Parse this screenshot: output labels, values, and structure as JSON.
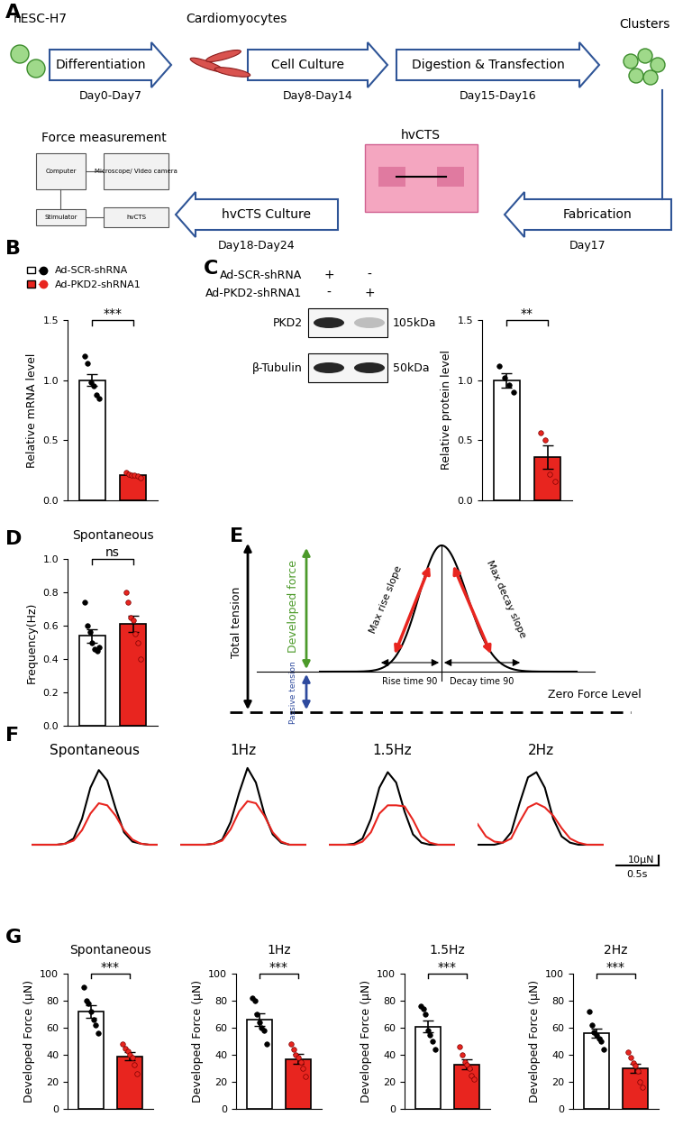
{
  "workflow": {
    "panel": "A",
    "stages": [
      {
        "text": "Differentiation",
        "days": "Day0-Day7"
      },
      {
        "text": "Cell Culture",
        "days": "Day8-Day14"
      },
      {
        "text": "Digestion & Transfection",
        "days": "Day15-Day16"
      },
      {
        "text": "Fabrication",
        "days": "Day17"
      },
      {
        "text": "hvCTS Culture",
        "days": "Day18-Day24"
      }
    ],
    "nodes": [
      "hESC-H7",
      "Cardiomyocytes",
      "Clusters",
      "hvCTS",
      "Force measurement"
    ],
    "setup_labels": [
      "Computer",
      "Microscope/ Video camera",
      "Stimulator",
      "hvCTS"
    ]
  },
  "blot": {
    "panel": "C",
    "conditions": [
      {
        "name": "Ad-SCR-shRNA",
        "lanes": [
          "+",
          "-"
        ]
      },
      {
        "name": "Ad-PKD2-shRNA1",
        "lanes": [
          "-",
          "+"
        ]
      }
    ],
    "bands": [
      {
        "protein": "PKD2",
        "size": "105kDa",
        "intensity": [
          1.0,
          0.3
        ]
      },
      {
        "protein": "β-Tubulin",
        "size": "50kDa",
        "intensity": [
          1.0,
          1.0
        ]
      }
    ]
  },
  "schematic": {
    "panel": "E",
    "total": "Total tension",
    "developed": "Developed force",
    "passive": "Passive tension",
    "rise_slope": "Max rise slope",
    "decay_slope": "Max decay slope",
    "rise_time": "Rise time 90",
    "decay_time": "Decay time 90",
    "zero": "Zero Force Level"
  },
  "traces": {
    "panel": "F",
    "type": "line",
    "tick_labels": false,
    "x": [
      0.0,
      0.1,
      0.2,
      0.3,
      0.4,
      0.5,
      0.6,
      0.7,
      0.8,
      0.9,
      1.0,
      1.1,
      1.2,
      1.3,
      1.4,
      1.5
    ],
    "xlim": [
      0.0,
      1.5
    ],
    "ylim": [
      -20,
      80
    ],
    "panels": [
      {
        "title": "Spontaneous",
        "series": [
          {
            "color": "#000000",
            "values": [
              0,
              0,
              0,
              0,
              1,
              6,
              25,
              55,
              72,
              62,
              35,
              12,
              3,
              1,
              0,
              0
            ]
          },
          {
            "color": "#e8251f",
            "values": [
              0,
              0,
              0,
              0,
              1,
              4,
              14,
              30,
              40,
              38,
              28,
              14,
              5,
              1,
              0,
              0
            ]
          }
        ]
      },
      {
        "title": "1Hz",
        "series": [
          {
            "color": "#000000",
            "values": [
              0,
              0,
              0,
              0,
              1,
              5,
              22,
              50,
              74,
              60,
              30,
              10,
              2,
              0,
              0,
              0
            ]
          },
          {
            "color": "#e8251f",
            "values": [
              0,
              0,
              0,
              0,
              1,
              4,
              15,
              32,
              42,
              40,
              28,
              12,
              3,
              0,
              0,
              0
            ]
          }
        ]
      },
      {
        "title": "1.5Hz",
        "series": [
          {
            "color": "#000000",
            "values": [
              0,
              0,
              0,
              1,
              6,
              25,
              55,
              70,
              60,
              32,
              10,
              2,
              0,
              0,
              0,
              0
            ]
          },
          {
            "color": "#e8251f",
            "values": [
              0,
              0,
              0,
              0,
              3,
              12,
              30,
              38,
              38,
              37,
              24,
              8,
              2,
              0,
              0,
              0
            ]
          }
        ]
      },
      {
        "title": "2Hz",
        "series": [
          {
            "color": "#000000",
            "values": [
              0,
              0,
              0,
              2,
              12,
              40,
              65,
              70,
              55,
              25,
              8,
              2,
              0,
              0,
              0,
              0
            ]
          },
          {
            "color": "#e8251f",
            "values": [
              20,
              8,
              3,
              2,
              6,
              22,
              36,
              40,
              36,
              28,
              16,
              6,
              2,
              0,
              0,
              0
            ]
          }
        ]
      }
    ],
    "scale_bar": {
      "y": 10,
      "y_label": "10μN",
      "x": 0.5,
      "x_label": "0.5s"
    }
  },
  "chart_data": [
    {
      "panel": "B",
      "type": "bar",
      "ylabel": "Relative mRNA level",
      "ylim": [
        0.0,
        1.5
      ],
      "yticks": [
        0.0,
        0.5,
        1.0,
        1.5
      ],
      "legend": "top",
      "significance": "***",
      "marker": "o",
      "tick_labels": "y",
      "series": [
        {
          "name": "Ad-SCR-shRNA",
          "color": "#ffffff",
          "values": [
            1.0
          ],
          "errors": [
            0.05
          ],
          "points": [
            [
              1.2,
              1.14,
              0.98,
              0.95,
              0.88,
              0.85
            ]
          ]
        },
        {
          "name": "Ad-PKD2-shRNA1",
          "color": "#e8251f",
          "values": [
            0.21
          ],
          "errors": [
            0.01
          ],
          "points": [
            [
              0.23,
              0.22,
              0.21,
              0.21,
              0.2,
              0.19
            ]
          ]
        }
      ]
    },
    {
      "type": "bar",
      "ylabel": "Relative protein level",
      "ylim": [
        0.0,
        1.5
      ],
      "yticks": [
        0.0,
        0.5,
        1.0,
        1.5
      ],
      "significance": "**",
      "marker": "o",
      "tick_labels": "y",
      "series": [
        {
          "color": "#ffffff",
          "values": [
            1.0
          ],
          "errors": [
            0.06
          ],
          "points": [
            [
              1.12,
              1.02,
              0.96,
              0.9
            ]
          ]
        },
        {
          "color": "#e8251f",
          "values": [
            0.36
          ],
          "errors": [
            0.1
          ],
          "points": [
            [
              0.56,
              0.5,
              0.22,
              0.16
            ]
          ]
        }
      ]
    },
    {
      "panel": "D",
      "type": "bar",
      "title": "Spontaneous",
      "ylabel": "Frequency(Hz)",
      "ylim": [
        0.0,
        1.0
      ],
      "yticks": [
        0.0,
        0.2,
        0.4,
        0.6,
        0.8,
        1.0
      ],
      "significance": "ns",
      "marker": "o",
      "tick_labels": "y",
      "series": [
        {
          "color": "#ffffff",
          "values": [
            0.54
          ],
          "errors": [
            0.04
          ],
          "points": [
            [
              0.74,
              0.6,
              0.56,
              0.5,
              0.46,
              0.45,
              0.47
            ]
          ]
        },
        {
          "color": "#e8251f",
          "values": [
            0.61
          ],
          "errors": [
            0.05
          ],
          "points": [
            [
              0.8,
              0.74,
              0.65,
              0.63,
              0.55,
              0.5,
              0.4
            ]
          ]
        }
      ]
    },
    {
      "panel": "G",
      "type": "bar",
      "title": "Spontaneous",
      "ylabel": "Developed Force (μN)",
      "ylim": [
        0,
        100
      ],
      "yticks": [
        0,
        20,
        40,
        60,
        80,
        100
      ],
      "significance": "***",
      "marker": "o",
      "tick_labels": "y",
      "series": [
        {
          "color": "#ffffff",
          "values": [
            72
          ],
          "errors": [
            4.5
          ],
          "points": [
            [
              90,
              80,
              78,
              72,
              66,
              62,
              56
            ]
          ]
        },
        {
          "color": "#e8251f",
          "values": [
            39
          ],
          "errors": [
            3
          ],
          "points": [
            [
              48,
              45,
              43,
              40,
              38,
              33,
              26
            ]
          ]
        }
      ]
    },
    {
      "type": "bar",
      "title": "1Hz",
      "ylabel": "Developed Force (μN)",
      "ylim": [
        0,
        100
      ],
      "yticks": [
        0,
        20,
        40,
        60,
        80,
        100
      ],
      "significance": "***",
      "marker": "o",
      "tick_labels": "y",
      "series": [
        {
          "color": "#ffffff",
          "values": [
            66
          ],
          "errors": [
            4.5
          ],
          "points": [
            [
              82,
              80,
              70,
              64,
              60,
              58,
              48
            ]
          ]
        },
        {
          "color": "#e8251f",
          "values": [
            37
          ],
          "errors": [
            3.5
          ],
          "points": [
            [
              48,
              44,
              40,
              38,
              35,
              30,
              24
            ]
          ]
        }
      ]
    },
    {
      "type": "bar",
      "title": "1.5Hz",
      "ylabel": "Developed Force (μN)",
      "ylim": [
        0,
        100
      ],
      "yticks": [
        0,
        20,
        40,
        60,
        80,
        100
      ],
      "significance": "***",
      "marker": "o",
      "tick_labels": "y",
      "series": [
        {
          "color": "#ffffff",
          "values": [
            61
          ],
          "errors": [
            4.5
          ],
          "points": [
            [
              76,
              74,
              70,
              58,
              55,
              50,
              44
            ]
          ]
        },
        {
          "color": "#e8251f",
          "values": [
            33
          ],
          "errors": [
            3.5
          ],
          "points": [
            [
              46,
              40,
              35,
              33,
              30,
              25,
              22
            ]
          ]
        }
      ]
    },
    {
      "type": "bar",
      "title": "2Hz",
      "ylabel": "Developed Force (μN)",
      "ylim": [
        0,
        100
      ],
      "yticks": [
        0,
        20,
        40,
        60,
        80,
        100
      ],
      "significance": "***",
      "marker": "o",
      "tick_labels": "y",
      "series": [
        {
          "color": "#ffffff",
          "values": [
            56
          ],
          "errors": [
            3.5
          ],
          "points": [
            [
              72,
              62,
              57,
              55,
              52,
              50,
              44
            ]
          ]
        },
        {
          "color": "#e8251f",
          "values": [
            30
          ],
          "errors": [
            3.5
          ],
          "points": [
            [
              42,
              38,
              34,
              32,
              28,
              20,
              16
            ]
          ]
        }
      ]
    }
  ]
}
